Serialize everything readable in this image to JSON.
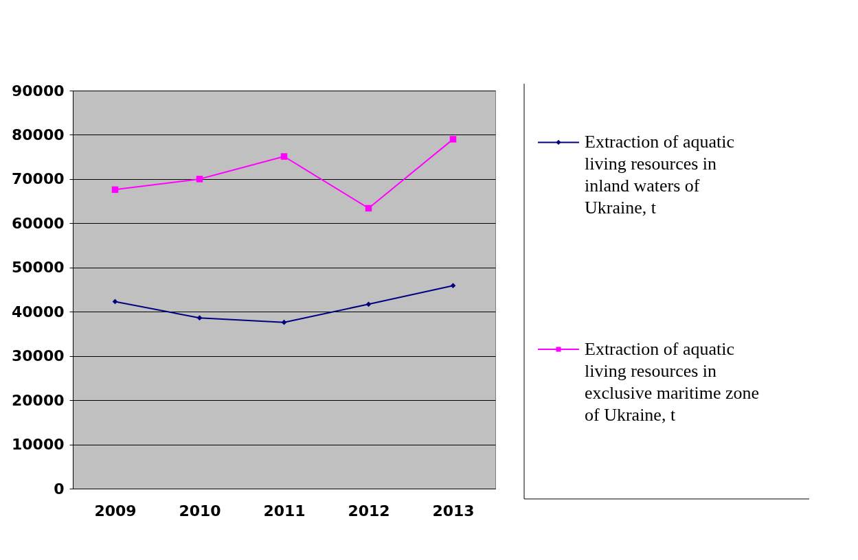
{
  "chart_data": {
    "type": "line",
    "categories": [
      "2009",
      "2010",
      "2011",
      "2012",
      "2013"
    ],
    "series": [
      {
        "name": "Extraction of aquatic living resources in inland waters of Ukraine, t",
        "color": "#000080",
        "marker": "diamond",
        "values": [
          42300,
          38600,
          37600,
          41700,
          45900
        ]
      },
      {
        "name": "Extraction of aquatic living resources in exclusive maritime zone of Ukraine, t",
        "color": "#ff00ff",
        "marker": "square",
        "values": [
          67600,
          70000,
          75100,
          63400,
          79000
        ]
      }
    ],
    "ylim": [
      0,
      90000
    ],
    "yticks": [
      0,
      10000,
      20000,
      30000,
      40000,
      50000,
      60000,
      70000,
      80000,
      90000
    ],
    "grid": "y",
    "legend": "right"
  }
}
